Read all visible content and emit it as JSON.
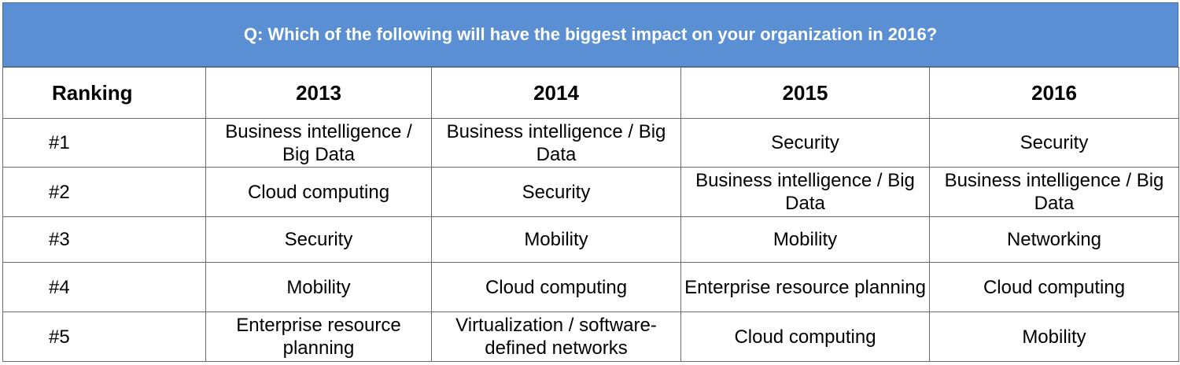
{
  "title": "Q: Which of the following will have the biggest impact on your organization in 2016?",
  "colors": {
    "banner": "#5b8fd4",
    "banner_text": "#ffffff",
    "grid": "#6b6b6b"
  },
  "chart_data": {
    "type": "table",
    "columns": [
      "Ranking",
      "2013",
      "2014",
      "2015",
      "2016"
    ],
    "rows": [
      [
        "#1",
        "Business intelligence / Big Data",
        "Business intelligence / Big Data",
        "Security",
        "Security"
      ],
      [
        "#2",
        "Cloud computing",
        "Security",
        "Business intelligence / Big Data",
        "Business intelligence / Big Data"
      ],
      [
        "#3",
        "Security",
        "Mobility",
        "Mobility",
        "Networking"
      ],
      [
        "#4",
        "Mobility",
        "Cloud computing",
        "Enterprise resource planning",
        "Cloud computing"
      ],
      [
        "#5",
        "Enterprise resource planning",
        "Virtualization / software-defined networks",
        "Cloud computing",
        "Mobility"
      ]
    ]
  }
}
